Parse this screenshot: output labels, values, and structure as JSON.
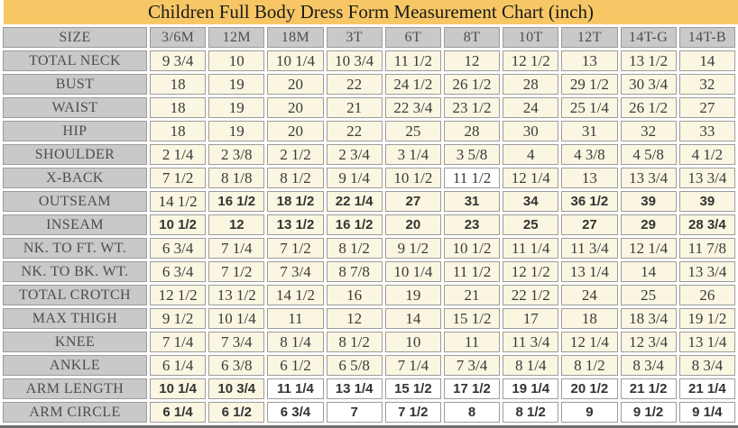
{
  "title": "Children Full Body Dress Form Measurement Chart (inch)",
  "colors": {
    "title_bg": "#F7C766",
    "header_bg": "#C9C9C9",
    "cell_bg": "#FAF6E1",
    "white_cell_bg": "#FFFFFF",
    "cell_border": "#9C9C9C",
    "bottom_bar": "#6F6F6F",
    "title_text": "#1B1B1B",
    "label_text": "#4D4D4D",
    "value_text": "#3A3A3A"
  },
  "chart_data": {
    "type": "table",
    "title": "Children Full Body Dress Form Measurement Chart (inch)",
    "columns": [
      "SIZE",
      "3/6M",
      "12M",
      "18M",
      "3T",
      "6T",
      "8T",
      "10T",
      "12T",
      "14T-G",
      "14T-B"
    ],
    "rows": [
      {
        "label": "TOTAL NECK",
        "style": "serif",
        "values": [
          "9 3/4",
          "10",
          "10 1/4",
          "10 3/4",
          "11 1/2",
          "12",
          "12 1/2",
          "13",
          "13 1/2",
          "14"
        ]
      },
      {
        "label": "BUST",
        "style": "serif",
        "values": [
          "18",
          "19",
          "20",
          "22",
          "24 1/2",
          "26 1/2",
          "28",
          "29 1/2",
          "30 3/4",
          "32"
        ]
      },
      {
        "label": "WAIST",
        "style": "serif",
        "values": [
          "18",
          "19",
          "20",
          "21",
          "22 3/4",
          "23 1/2",
          "24",
          "25 1/4",
          "26 1/2",
          "27"
        ]
      },
      {
        "label": "HIP",
        "style": "serif",
        "values": [
          "18",
          "19",
          "20",
          "22",
          "25",
          "28",
          "30",
          "31",
          "32",
          "33"
        ]
      },
      {
        "label": "SHOULDER",
        "style": "serif",
        "values": [
          "2 1/4",
          "2 3/8",
          "2 1/2",
          "2 3/4",
          "3 1/4",
          "3 5/8",
          "4",
          "4 3/8",
          "4 5/8",
          "4 1/2"
        ]
      },
      {
        "label": "X-BACK",
        "style": "serif",
        "values": [
          "7 1/2",
          "8 1/8",
          "8 1/2",
          "9 1/4",
          "10 1/2",
          "11 1/2",
          "12 1/4",
          "13",
          "13 3/4",
          "13 3/4"
        ],
        "white_cells": [
          5
        ]
      },
      {
        "label": "OUTSEAM",
        "style": "bold-sans",
        "values": [
          "14 1/2",
          "16 1/2",
          "18 1/2",
          "22 1/4",
          "27",
          "31",
          "34",
          "36 1/2",
          "39",
          "39"
        ],
        "serif_cells": [
          0
        ]
      },
      {
        "label": "INSEAM",
        "style": "bold-sans",
        "values": [
          "10 1/2",
          "12",
          "13 1/2",
          "16 1/2",
          "20",
          "23",
          "25",
          "27",
          "29",
          "28 3/4"
        ]
      },
      {
        "label": "NK. TO FT. WT.",
        "style": "serif",
        "values": [
          "6 3/4",
          "7 1/4",
          "7 1/2",
          "8 1/2",
          "9 1/2",
          "10 1/2",
          "11 1/4",
          "11 3/4",
          "12 1/4",
          "11 7/8"
        ]
      },
      {
        "label": "NK. TO BK. WT.",
        "style": "serif",
        "values": [
          "6 3/4",
          "7 1/2",
          "7 3/4",
          "8 7/8",
          "10 1/4",
          "11 1/2",
          "12 1/2",
          "13 1/4",
          "14",
          "13 3/4"
        ]
      },
      {
        "label": "TOTAL CROTCH",
        "style": "serif",
        "values": [
          "12 1/2",
          "13 1/2",
          "14 1/2",
          "16",
          "19",
          "21",
          "22 1/2",
          "24",
          "25",
          "26"
        ]
      },
      {
        "label": "MAX THIGH",
        "style": "serif",
        "values": [
          "9 1/2",
          "10 1/4",
          "11",
          "12",
          "14",
          "15 1/2",
          "17",
          "18",
          "18 3/4",
          "19 1/2"
        ]
      },
      {
        "label": "KNEE",
        "style": "serif",
        "values": [
          "7 1/4",
          "7 3/4",
          "8 1/4",
          "8 1/2",
          "10",
          "11",
          "11 3/4",
          "12 1/4",
          "12 3/4",
          "13 1/4"
        ]
      },
      {
        "label": "ANKLE",
        "style": "serif",
        "values": [
          "6 1/4",
          "6 3/8",
          "6 1/2",
          "6 5/8",
          "7 1/4",
          "7 3/4",
          "8 1/4",
          "8 1/2",
          "8 3/4",
          "8 3/4"
        ]
      },
      {
        "label": "ARM LENGTH",
        "style": "bold-sans",
        "values": [
          "10 1/4",
          "10 3/4",
          "11 1/4",
          "13 1/4",
          "15 1/2",
          "17 1/2",
          "19 1/4",
          "20 1/2",
          "21 1/2",
          "21 1/4"
        ],
        "white_cells": [
          2,
          3,
          4,
          5,
          6,
          7,
          8,
          9
        ]
      },
      {
        "label": "ARM CIRCLE",
        "style": "bold-sans",
        "values": [
          "6 1/4",
          "6 1/2",
          "6 3/4",
          "7",
          "7 1/2",
          "8",
          "8 1/2",
          "9",
          "9 1/2",
          "9 1/4"
        ],
        "white_cells": [
          2,
          3,
          4,
          5,
          6,
          7,
          8,
          9
        ]
      }
    ]
  }
}
